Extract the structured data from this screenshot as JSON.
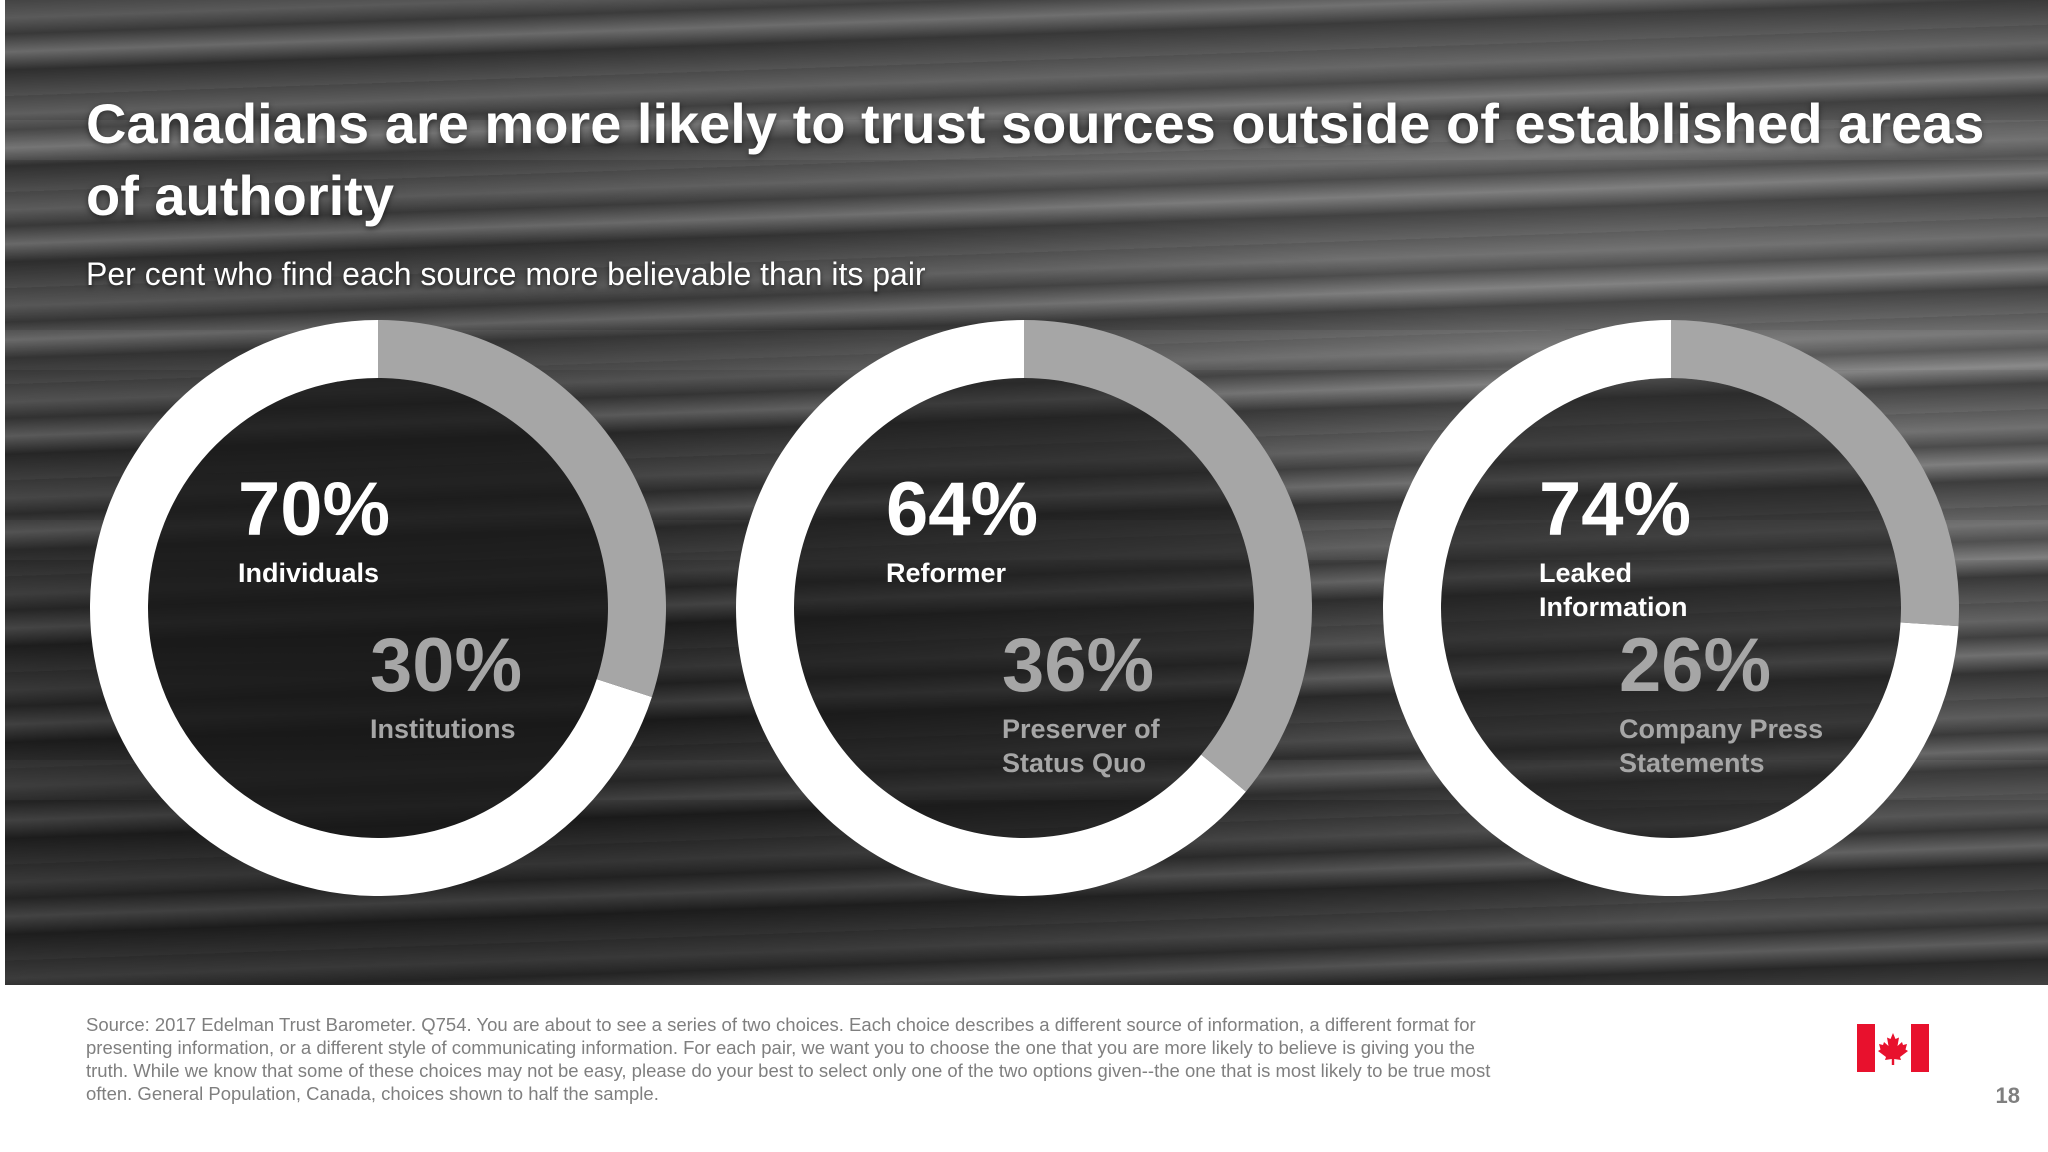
{
  "slide": {
    "title": "Canadians are more likely to trust sources outside of established areas of authority",
    "subtitle": "Per cent who find each source more believable than its pair",
    "source": "Source: 2017 Edelman Trust Barometer. Q754. You are about to see a series of two choices. Each choice describes a different source of information, a different format for presenting information, or a different style of communicating information. For each pair, we want you to choose the one that you are more likely to believe is giving you the truth. While we know that some of these choices may not be easy, please do your best to select only one of the two options given--the one that is most likely to be true most often. General Population, Canada, choices shown to half the sample.",
    "page_number": "18"
  },
  "colors": {
    "primary_segment": "#ffffff",
    "secondary_segment": "#a6a6a6",
    "donut_inner": "#1a1a1a",
    "flag_red": "#e8112d"
  },
  "chart_data": [
    {
      "type": "pie",
      "variant": "donut",
      "slices": [
        {
          "label": "Individuals",
          "value": 70,
          "display": "70%",
          "color": "#ffffff"
        },
        {
          "label": "Institutions",
          "value": 30,
          "display": "30%",
          "color": "#a6a6a6"
        }
      ]
    },
    {
      "type": "pie",
      "variant": "donut",
      "slices": [
        {
          "label": "Reformer",
          "value": 64,
          "display": "64%",
          "color": "#ffffff"
        },
        {
          "label": "Preserver of Status Quo",
          "value": 36,
          "display": "36%",
          "color": "#a6a6a6"
        }
      ]
    },
    {
      "type": "pie",
      "variant": "donut",
      "slices": [
        {
          "label": "Leaked Information",
          "value": 74,
          "display": "74%",
          "color": "#ffffff"
        },
        {
          "label": "Company Press Statements",
          "value": 26,
          "display": "26%",
          "color": "#a6a6a6"
        }
      ]
    }
  ]
}
